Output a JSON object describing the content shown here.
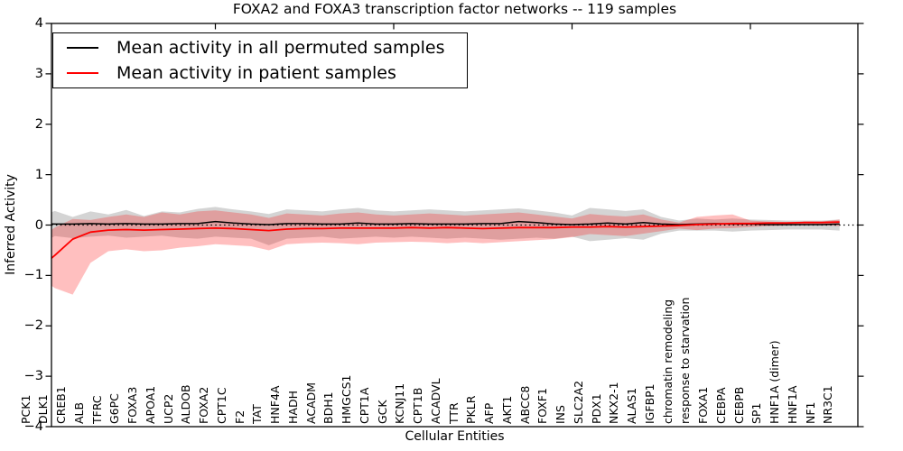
{
  "axes": {
    "y_tick_labels": [
      "4",
      "3",
      "2",
      "1",
      "0",
      "−1",
      "−2",
      "−3",
      "−4"
    ]
  },
  "chart_data": {
    "type": "line",
    "title": "FOXA2 and FOXA3 transcription factor networks -- 119 samples",
    "xlabel": "Cellular Entities",
    "ylabel": "Inferred Activity",
    "ylim": [
      -4,
      4
    ],
    "grid": false,
    "legend_position": "upper left",
    "zero_reference_line": 0,
    "categories": [
      "PCK1",
      "DLK1",
      "CREB1",
      "ALB",
      "TFRC",
      "G6PC",
      "FOXA3",
      "APOA1",
      "UCP2",
      "ALDOB",
      "FOXA2",
      "CPT1C",
      "F2",
      "TAT",
      "HNF4A",
      "HADH",
      "ACADM",
      "BDH1",
      "HMGCS1",
      "CPT1A",
      "GCK",
      "KCNJ11",
      "CPT1B",
      "ACADVL",
      "TTR",
      "PKLR",
      "AFP",
      "AKT1",
      "ABCC8",
      "FOXF1",
      "INS",
      "SLC2A2",
      "PDX1",
      "NKX2-1",
      "ALAS1",
      "IGFBP1",
      "chromatin remodeling",
      "response to starvation",
      "FOXA1",
      "CEBPA",
      "CEBPB",
      "SP1",
      "HNF1A (dimer)",
      "HNF1A",
      "NF1",
      "NR3C1"
    ],
    "series": [
      {
        "name": "Mean activity in all permuted samples",
        "color": "#000000",
        "values": [
          0.03,
          0.02,
          0.02,
          0.03,
          0.02,
          0.03,
          0.02,
          0.02,
          0.03,
          0.03,
          0.07,
          0.04,
          0.02,
          0.01,
          0.03,
          0.03,
          0.02,
          0.02,
          0.04,
          0.02,
          0.02,
          0.03,
          0.02,
          0.02,
          0.02,
          0.03,
          0.03,
          0.07,
          0.05,
          0.02,
          0.01,
          0.02,
          0.04,
          0.02,
          0.05,
          0.02,
          0.01,
          0.02,
          0.03,
          0.02,
          0.02,
          0.01,
          0.01,
          0.01,
          0.01,
          0.02
        ]
      },
      {
        "name": "Mean activity in patient samples",
        "color": "#ff0000",
        "values": [
          -0.9,
          -0.6,
          -0.28,
          -0.14,
          -0.1,
          -0.09,
          -0.1,
          -0.09,
          -0.08,
          -0.07,
          -0.06,
          -0.07,
          -0.09,
          -0.11,
          -0.08,
          -0.07,
          -0.07,
          -0.06,
          -0.06,
          -0.06,
          -0.06,
          -0.05,
          -0.06,
          -0.05,
          -0.06,
          -0.07,
          -0.06,
          -0.05,
          -0.05,
          -0.05,
          -0.04,
          -0.04,
          -0.03,
          -0.04,
          -0.03,
          -0.02,
          -0.01,
          0.01,
          0.02,
          0.03,
          0.03,
          0.04,
          0.04,
          0.05,
          0.05,
          0.06
        ]
      }
    ],
    "bands": [
      {
        "name": "permuted-samples-range",
        "color": "#999999",
        "opacity": 0.42,
        "hi": [
          0.15,
          0.28,
          0.16,
          0.27,
          0.21,
          0.3,
          0.18,
          0.27,
          0.25,
          0.32,
          0.36,
          0.31,
          0.27,
          0.22,
          0.31,
          0.29,
          0.27,
          0.31,
          0.34,
          0.29,
          0.27,
          0.29,
          0.31,
          0.29,
          0.27,
          0.29,
          0.31,
          0.33,
          0.29,
          0.25,
          0.19,
          0.34,
          0.31,
          0.28,
          0.31,
          0.16,
          0.09,
          0.13,
          0.11,
          0.13,
          0.11,
          0.1,
          0.09,
          0.09,
          0.09,
          0.11
        ],
        "lo": [
          -0.4,
          -0.22,
          -0.26,
          -0.23,
          -0.21,
          -0.25,
          -0.23,
          -0.21,
          -0.25,
          -0.27,
          -0.23,
          -0.25,
          -0.27,
          -0.4,
          -0.27,
          -0.25,
          -0.23,
          -0.27,
          -0.25,
          -0.23,
          -0.25,
          -0.23,
          -0.25,
          -0.27,
          -0.25,
          -0.27,
          -0.29,
          -0.27,
          -0.25,
          -0.27,
          -0.23,
          -0.32,
          -0.29,
          -0.26,
          -0.29,
          -0.17,
          -0.11,
          -0.11,
          -0.11,
          -0.13,
          -0.11,
          -0.1,
          -0.09,
          -0.09,
          -0.09,
          -0.11
        ]
      },
      {
        "name": "patient-samples-range",
        "color": "#ff0000",
        "opacity": 0.25,
        "hi": [
          -0.3,
          -0.05,
          0.12,
          0.1,
          0.16,
          0.21,
          0.16,
          0.25,
          0.21,
          0.27,
          0.29,
          0.25,
          0.21,
          0.14,
          0.23,
          0.21,
          0.19,
          0.23,
          0.25,
          0.21,
          0.19,
          0.21,
          0.23,
          0.21,
          0.19,
          0.21,
          0.23,
          0.25,
          0.21,
          0.17,
          0.13,
          0.22,
          0.19,
          0.17,
          0.21,
          0.11,
          0.05,
          0.16,
          0.19,
          0.21,
          0.09,
          0.07,
          0.06,
          0.07,
          0.07,
          0.11
        ],
        "lo": [
          -1.0,
          -1.25,
          -1.38,
          -0.75,
          -0.52,
          -0.48,
          -0.52,
          -0.5,
          -0.45,
          -0.42,
          -0.38,
          -0.4,
          -0.42,
          -0.5,
          -0.38,
          -0.36,
          -0.35,
          -0.36,
          -0.38,
          -0.35,
          -0.34,
          -0.33,
          -0.34,
          -0.36,
          -0.34,
          -0.36,
          -0.34,
          -0.32,
          -0.3,
          -0.28,
          -0.24,
          -0.18,
          -0.2,
          -0.22,
          -0.17,
          -0.12,
          -0.07,
          -0.1,
          -0.07,
          -0.06,
          -0.04,
          -0.02,
          -0.01,
          0.0,
          0.0,
          -0.02
        ]
      }
    ]
  }
}
